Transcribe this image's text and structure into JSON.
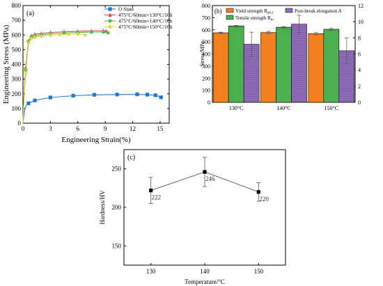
{
  "chart_data": [
    {
      "panel": "(a)",
      "type": "line",
      "xlabel": "Engineering Strain(%)",
      "ylabel": "Engineering Stress (MPa)",
      "xlim": [
        0,
        16
      ],
      "ylim": [
        0,
        800
      ],
      "xticks": [
        0,
        3,
        6,
        9,
        12,
        15
      ],
      "yticks": [
        0,
        100,
        200,
        300,
        400,
        500,
        600,
        700,
        800
      ],
      "legend_position": "top-right",
      "series": [
        {
          "name": "O State",
          "color": "#1f77d4",
          "marker": "square",
          "x": [
            0,
            0.2,
            0.6,
            1.3,
            3,
            5.5,
            7.8,
            10.3,
            12.5,
            13.6,
            14.5,
            15.1
          ],
          "y": [
            0,
            110,
            135,
            155,
            175,
            187,
            193,
            195,
            196,
            194,
            190,
            176
          ]
        },
        {
          "name": "475°C/60min+130°C/16h",
          "color": "#e8425c",
          "marker": "triangle",
          "x": [
            0,
            0.1,
            0.3,
            0.6,
            0.9,
            1.3,
            2,
            3,
            4.5,
            6,
            7.5,
            8.8,
            9.1
          ],
          "y": [
            0,
            180,
            380,
            560,
            595,
            605,
            610,
            617,
            622,
            625,
            628,
            630,
            626
          ]
        },
        {
          "name": "475°C/60min+140°C/16h",
          "color": "#4fbf56",
          "marker": "circle",
          "x": [
            0,
            0.1,
            0.3,
            0.6,
            0.9,
            1.3,
            2,
            3,
            4.5,
            6,
            7.5,
            8.8,
            9.3
          ],
          "y": [
            0,
            170,
            360,
            555,
            585,
            595,
            602,
            608,
            613,
            617,
            620,
            621,
            615
          ]
        },
        {
          "name": "475°C/60min+150°C/16h",
          "color": "#e8d23c",
          "marker": "diamond",
          "x": [
            0,
            0.1,
            0.3,
            0.6,
            0.9,
            1.3,
            2,
            3,
            4,
            5,
            6,
            6.8
          ],
          "y": [
            0,
            160,
            340,
            545,
            575,
            585,
            592,
            598,
            602,
            605,
            606,
            600
          ]
        }
      ]
    },
    {
      "panel": "(b)",
      "type": "bar",
      "ylabel": "Stress/MPa",
      "y2label": "",
      "categories": [
        "130°C",
        "140°C",
        "150°C"
      ],
      "ylim": [
        0,
        800
      ],
      "yticks": [
        0,
        100,
        200,
        300,
        400,
        500,
        600,
        700,
        800
      ],
      "y2lim": [
        0,
        12
      ],
      "y2ticks": [
        0,
        2,
        4,
        6,
        8,
        10,
        12
      ],
      "legend": {
        "yield_label": "Yield strength R",
        "yield_sub": "p0.2",
        "tensile_label": "Tensile strength R",
        "tensile_sub": "m",
        "elongation_label": "Post-break elongation A"
      },
      "series": [
        {
          "name": "Yield strength Rp0.2",
          "axis": "left",
          "color": "#f47f21",
          "values": [
            575,
            577,
            568
          ],
          "errors": [
            5,
            10,
            10
          ]
        },
        {
          "name": "Tensile strength Rm",
          "axis": "left",
          "color": "#4cb050",
          "values": [
            632,
            621,
            604
          ],
          "errors": [
            4,
            6,
            10
          ]
        },
        {
          "name": "Post-break elongation A",
          "axis": "right",
          "color": "#8e6db8",
          "values": [
            7.2,
            9.7,
            6.4
          ],
          "errors": [
            1.5,
            1.1,
            1.6
          ]
        }
      ]
    },
    {
      "panel": "(c)",
      "type": "line",
      "xlabel": "Temperature/°C",
      "ylabel": "Hardness/HV",
      "xlim": [
        125,
        155
      ],
      "ylim": [
        125,
        275
      ],
      "xticks": [
        130,
        140,
        150
      ],
      "yticks": [
        150,
        200,
        250
      ],
      "series": [
        {
          "name": "",
          "color": "#000000",
          "marker": "square",
          "x": [
            130,
            140,
            150
          ],
          "y": [
            222,
            246,
            220
          ],
          "errors": [
            17,
            19,
            12
          ],
          "labels": [
            "222",
            "246",
            "220"
          ]
        }
      ]
    }
  ]
}
